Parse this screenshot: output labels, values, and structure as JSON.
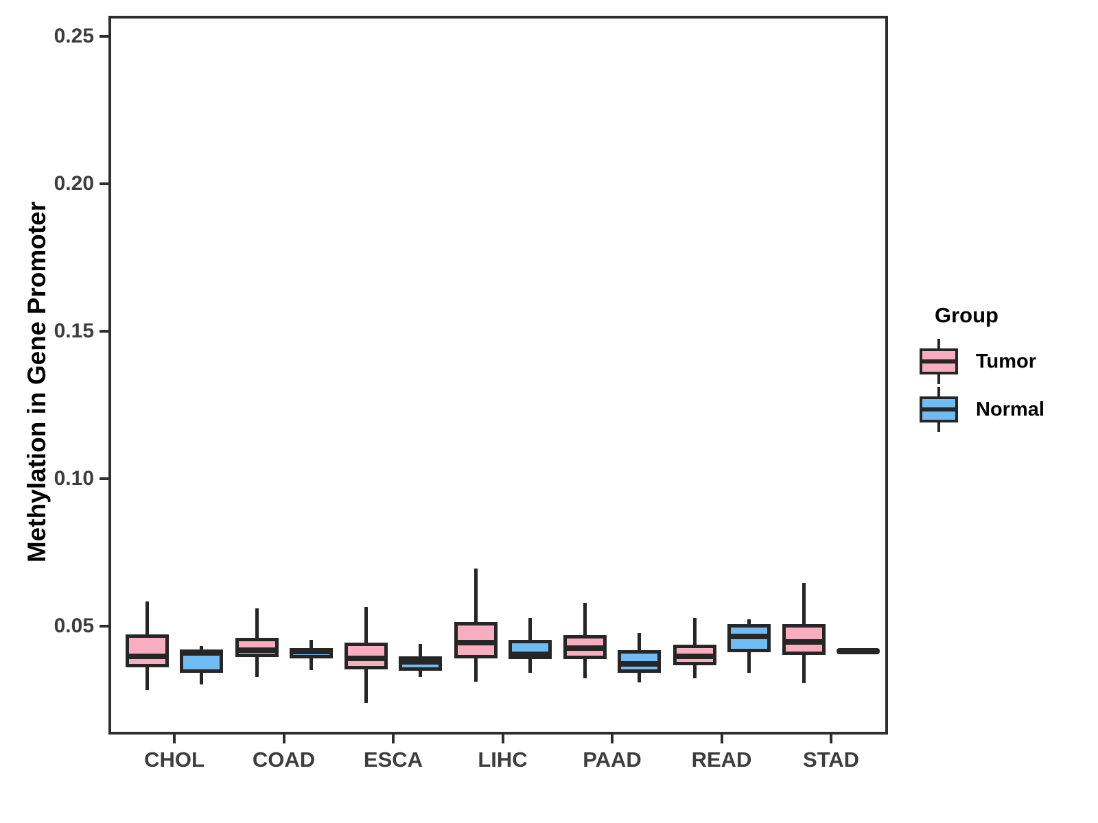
{
  "y_axis": {
    "label": "Methylation in Gene Promoter",
    "tick_labels": [
      "0.05",
      "0.10",
      "0.15",
      "0.20",
      "0.25"
    ],
    "tick_values": [
      0.05,
      0.1,
      0.15,
      0.2,
      0.25
    ]
  },
  "x_axis": {
    "categories": [
      "CHOL",
      "COAD",
      "ESCA",
      "LIHC",
      "PAAD",
      "READ",
      "STAD"
    ]
  },
  "legend": {
    "title": "Group",
    "items": [
      {
        "label": "Tumor",
        "color": "#F9ADC0"
      },
      {
        "label": "Normal",
        "color": "#70BBF2"
      }
    ]
  },
  "colors": {
    "tumor_fill": "#F9ADC0",
    "normal_fill": "#70BBF2",
    "stroke": "#262626",
    "axis_text": "#3d3d3d"
  },
  "chart_data": {
    "type": "boxplot",
    "title": "",
    "xlabel": "",
    "ylabel": "Methylation in Gene Promoter",
    "ylim": [
      0.0133,
      0.257
    ],
    "grid": false,
    "legend_position": "right",
    "categories": [
      "CHOL",
      "COAD",
      "ESCA",
      "LIHC",
      "PAAD",
      "READ",
      "STAD"
    ],
    "series": [
      {
        "name": "Tumor",
        "color": "#F9ADC0",
        "stats": [
          {
            "min": 0.0285,
            "q1": 0.036,
            "median": 0.0398,
            "q3": 0.0472,
            "max": 0.0584
          },
          {
            "min": 0.0329,
            "q1": 0.0395,
            "median": 0.042,
            "q3": 0.0462,
            "max": 0.056
          },
          {
            "min": 0.024,
            "q1": 0.0355,
            "median": 0.0392,
            "q3": 0.0444,
            "max": 0.0565
          },
          {
            "min": 0.0312,
            "q1": 0.0392,
            "median": 0.0444,
            "q3": 0.0514,
            "max": 0.0695
          },
          {
            "min": 0.0324,
            "q1": 0.0388,
            "median": 0.0425,
            "q3": 0.047,
            "max": 0.058
          },
          {
            "min": 0.0324,
            "q1": 0.0369,
            "median": 0.0397,
            "q3": 0.0437,
            "max": 0.0528
          },
          {
            "min": 0.0308,
            "q1": 0.0402,
            "median": 0.0446,
            "q3": 0.0507,
            "max": 0.0648
          }
        ]
      },
      {
        "name": "Normal",
        "color": "#70BBF2",
        "stats": [
          {
            "min": 0.0303,
            "q1": 0.0343,
            "median": 0.041,
            "q3": 0.0421,
            "max": 0.0432
          },
          {
            "min": 0.0352,
            "q1": 0.039,
            "median": 0.0415,
            "q3": 0.0427,
            "max": 0.0453
          },
          {
            "min": 0.0329,
            "q1": 0.035,
            "median": 0.038,
            "q3": 0.0397,
            "max": 0.0441
          },
          {
            "min": 0.0343,
            "q1": 0.0388,
            "median": 0.0404,
            "q3": 0.0455,
            "max": 0.0528
          },
          {
            "min": 0.031,
            "q1": 0.0343,
            "median": 0.0373,
            "q3": 0.042,
            "max": 0.0477
          },
          {
            "min": 0.0342,
            "q1": 0.0413,
            "median": 0.0465,
            "q3": 0.0507,
            "max": 0.0523
          },
          {
            "min": 0.0416,
            "q1": 0.0416,
            "median": 0.0416,
            "q3": 0.0416,
            "max": 0.0416
          }
        ]
      }
    ]
  }
}
